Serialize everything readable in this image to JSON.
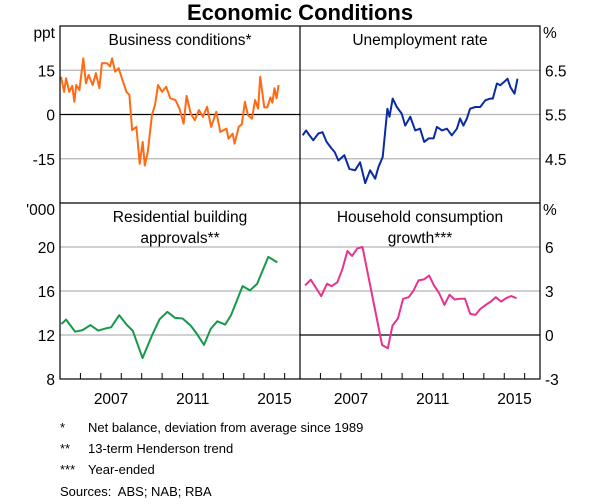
{
  "title": "Economic Conditions",
  "colors": {
    "grid": "#b4b4b4",
    "frame": "#000000"
  },
  "x_ticks": [
    "2007",
    "2011",
    "2015"
  ],
  "footnotes": [
    {
      "mark": "*",
      "text": "Net balance, deviation from average since 1989"
    },
    {
      "mark": "**",
      "text": "13-term Henderson trend"
    },
    {
      "mark": "***",
      "text": "Year-ended"
    }
  ],
  "sources": "Sources:  ABS; NAB; RBA",
  "chart_data": [
    {
      "type": "line",
      "title": [
        "Business conditions*"
      ],
      "unit": "ppt",
      "axis_side": "left",
      "ylim": [
        -30,
        30
      ],
      "yticks": [
        "15",
        "0",
        "-15"
      ],
      "ytick_values": [
        15,
        0,
        -15
      ],
      "zero_line": true,
      "xlim": [
        2005,
        2016.75
      ],
      "color": "#ff6a13",
      "x": [
        2005.05,
        2005.2,
        2005.3,
        2005.45,
        2005.6,
        2005.7,
        2005.8,
        2005.95,
        2006.14,
        2006.27,
        2006.4,
        2006.6,
        2006.76,
        2006.93,
        2007.05,
        2007.3,
        2007.45,
        2007.55,
        2007.7,
        2007.87,
        2008.03,
        2008.25,
        2008.4,
        2008.53,
        2008.74,
        2008.9,
        2009.05,
        2009.15,
        2009.3,
        2009.5,
        2009.65,
        2009.8,
        2010.0,
        2010.2,
        2010.4,
        2010.65,
        2010.85,
        2011.05,
        2011.2,
        2011.4,
        2011.6,
        2011.8,
        2012.0,
        2012.2,
        2012.4,
        2012.65,
        2012.85,
        2013.15,
        2013.25,
        2013.45,
        2013.55,
        2013.75,
        2013.9,
        2014.05,
        2014.2,
        2014.4,
        2014.55,
        2014.7,
        2014.8,
        2015.0,
        2015.15,
        2015.3,
        2015.4,
        2015.5,
        2015.6,
        2015.7
      ],
      "y": [
        12.8,
        7.7,
        12.3,
        7.7,
        9.7,
        4.3,
        10,
        8.3,
        19,
        10.6,
        13.4,
        10,
        14,
        8.9,
        17.4,
        17.4,
        16.3,
        19,
        14.5,
        15.7,
        12.3,
        7.7,
        6.6,
        -5.3,
        -4.2,
        -16.7,
        -9.3,
        -17.3,
        -12.7,
        -0.2,
        3.2,
        10,
        7.7,
        9.4,
        5.5,
        4.9,
        2,
        -3.1,
        6.3,
        0.3,
        -1.9,
        1.5,
        -0.8,
        2.6,
        -4.2,
        0.9,
        -5.9,
        -4.8,
        -8.2,
        -6.5,
        -9.9,
        -4.2,
        -3.3,
        4.3,
        -0.2,
        -1.4,
        4.9,
        2,
        12.8,
        2.4,
        2.4,
        5.8,
        4,
        8.9,
        5.5,
        10
      ]
    },
    {
      "type": "line",
      "title": [
        "Unemployment rate"
      ],
      "unit": "%",
      "axis_side": "right",
      "ylim": [
        3.5,
        7.5
      ],
      "yticks": [
        "6.5",
        "5.5",
        "4.5"
      ],
      "ytick_values": [
        6.5,
        5.5,
        4.5
      ],
      "zero_line": false,
      "xlim": [
        2005,
        2016.75
      ],
      "color": "#0a2ca0",
      "x": [
        2005.13,
        2005.3,
        2005.46,
        2005.65,
        2005.9,
        2006.1,
        2006.3,
        2006.55,
        2006.7,
        2006.88,
        2007.17,
        2007.42,
        2007.7,
        2007.94,
        2008.19,
        2008.43,
        2008.68,
        2008.84,
        2009.05,
        2009.28,
        2009.38,
        2009.54,
        2009.74,
        2009.98,
        2010.15,
        2010.4,
        2010.64,
        2010.88,
        2011.08,
        2011.3,
        2011.54,
        2011.7,
        2011.95,
        2012.19,
        2012.43,
        2012.68,
        2012.84,
        2013.0,
        2013.17,
        2013.33,
        2013.58,
        2013.82,
        2014.07,
        2014.31,
        2014.44,
        2014.64,
        2014.8,
        2015.0,
        2015.16,
        2015.3,
        2015.5,
        2015.65
      ],
      "y": [
        5.03,
        5.14,
        5.03,
        4.92,
        5.07,
        5.1,
        4.88,
        4.73,
        4.65,
        4.46,
        4.58,
        4.27,
        4.24,
        4.42,
        3.95,
        4.24,
        4.05,
        4.31,
        4.54,
        5.63,
        5.45,
        5.86,
        5.67,
        5.52,
        5.25,
        5.45,
        5.14,
        5.18,
        4.88,
        4.96,
        4.96,
        5.22,
        5.14,
        5.18,
        5.03,
        5.18,
        5.41,
        5.25,
        5.41,
        5.63,
        5.67,
        5.67,
        5.82,
        5.86,
        5.86,
        6.2,
        6.16,
        6.24,
        6.31,
        6.12,
        5.97,
        6.31
      ]
    },
    {
      "type": "line",
      "title": [
        "Residential building",
        "approvals**"
      ],
      "unit": "'000",
      "axis_side": "left",
      "ylim": [
        8,
        24
      ],
      "yticks": [
        "20",
        "16",
        "12",
        "8"
      ],
      "ytick_values": [
        20,
        16,
        12,
        8
      ],
      "zero_line": false,
      "xlim": [
        2005,
        2016.75
      ],
      "color": "#17994a",
      "x": [
        2005.07,
        2005.3,
        2005.74,
        2006.1,
        2006.49,
        2006.87,
        2007.24,
        2007.5,
        2007.9,
        2008.28,
        2008.56,
        2009.04,
        2009.5,
        2009.88,
        2010.26,
        2010.64,
        2011.0,
        2011.4,
        2011.7,
        2012.05,
        2012.38,
        2012.7,
        2013.09,
        2013.37,
        2013.94,
        2014.3,
        2014.65,
        2015.2,
        2015.64
      ],
      "y": [
        13.0,
        13.4,
        12.3,
        12.45,
        12.9,
        12.4,
        12.6,
        12.7,
        13.8,
        12.9,
        12.4,
        9.9,
        11.95,
        13.45,
        14.1,
        13.55,
        13.5,
        12.85,
        12.1,
        11.1,
        12.55,
        13.25,
        12.95,
        13.8,
        16.45,
        16.05,
        16.65,
        19.1,
        18.6
      ]
    },
    {
      "type": "line",
      "title": [
        "Household consumption",
        "growth***"
      ],
      "unit": "%",
      "axis_side": "right",
      "ylim": [
        -3,
        9
      ],
      "yticks": [
        "6",
        "3",
        "0",
        "-3"
      ],
      "ytick_values": [
        6,
        3,
        0,
        -3
      ],
      "zero_line": true,
      "xlim": [
        2005,
        2016.75
      ],
      "color": "#e5338e",
      "x": [
        2005.25,
        2005.53,
        2006.04,
        2006.32,
        2006.55,
        2006.83,
        2007.08,
        2007.32,
        2007.55,
        2007.8,
        2008.06,
        2009.02,
        2009.3,
        2009.53,
        2009.8,
        2010.05,
        2010.32,
        2010.56,
        2010.8,
        2011.07,
        2011.32,
        2011.56,
        2011.82,
        2012.07,
        2012.32,
        2012.58,
        2012.83,
        2013.08,
        2013.34,
        2013.59,
        2013.83,
        2014.09,
        2014.34,
        2014.58,
        2014.85,
        2015.09,
        2015.34,
        2015.6
      ],
      "y": [
        3.38,
        3.77,
        2.65,
        3.49,
        3.33,
        3.6,
        4.52,
        5.73,
        5.39,
        5.89,
        6.0,
        -0.68,
        -0.91,
        0.64,
        1.14,
        2.47,
        2.58,
        3.04,
        3.72,
        3.79,
        4.06,
        3.38,
        2.83,
        2.05,
        2.74,
        2.42,
        2.47,
        2.47,
        1.44,
        1.37,
        1.78,
        2.05,
        2.28,
        2.58,
        2.28,
        2.51,
        2.65,
        2.51
      ]
    }
  ]
}
